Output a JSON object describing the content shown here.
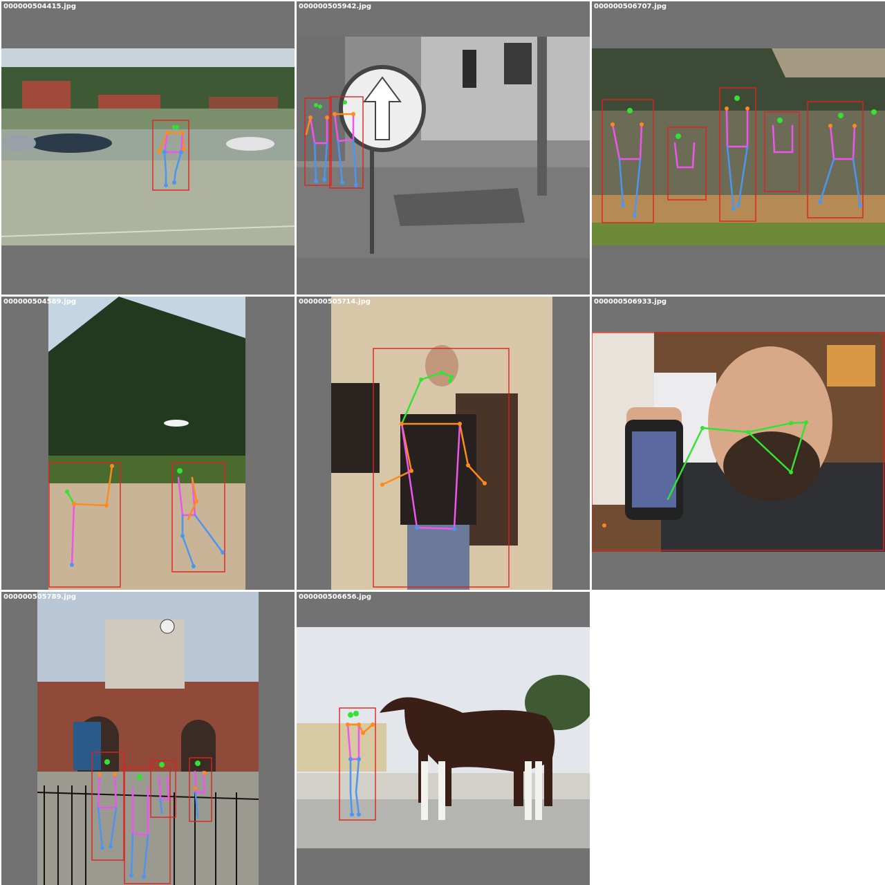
{
  "grid": {
    "background": "#ffffff",
    "tile_background": "#727272",
    "colors": {
      "bbox": "#e0211d",
      "face": "#33e233",
      "arm": "#ff8a1c",
      "torso": "#ee55ee",
      "leg": "#4a96f0"
    }
  },
  "tiles": [
    {
      "filename": "000000504415.jpg",
      "scene": "tennis court with player"
    },
    {
      "filename": "000000505942.jpg",
      "scene": "black and white street with arrow sign"
    },
    {
      "filename": "000000506707.jpg",
      "scene": "baseball dugout with players"
    },
    {
      "filename": "000000504589.jpg",
      "scene": "beach frisbee players"
    },
    {
      "filename": "000000505?14.jpg",
      "scene": "blurred man indoors"
    },
    {
      "filename": "000000506933.jpg",
      "scene": "man holding phone"
    },
    {
      "filename": "000000505789.jpg",
      "scene": "brick building with clock tower"
    },
    {
      "filename": "000000506656.jpg",
      "scene": "man with horses"
    }
  ]
}
